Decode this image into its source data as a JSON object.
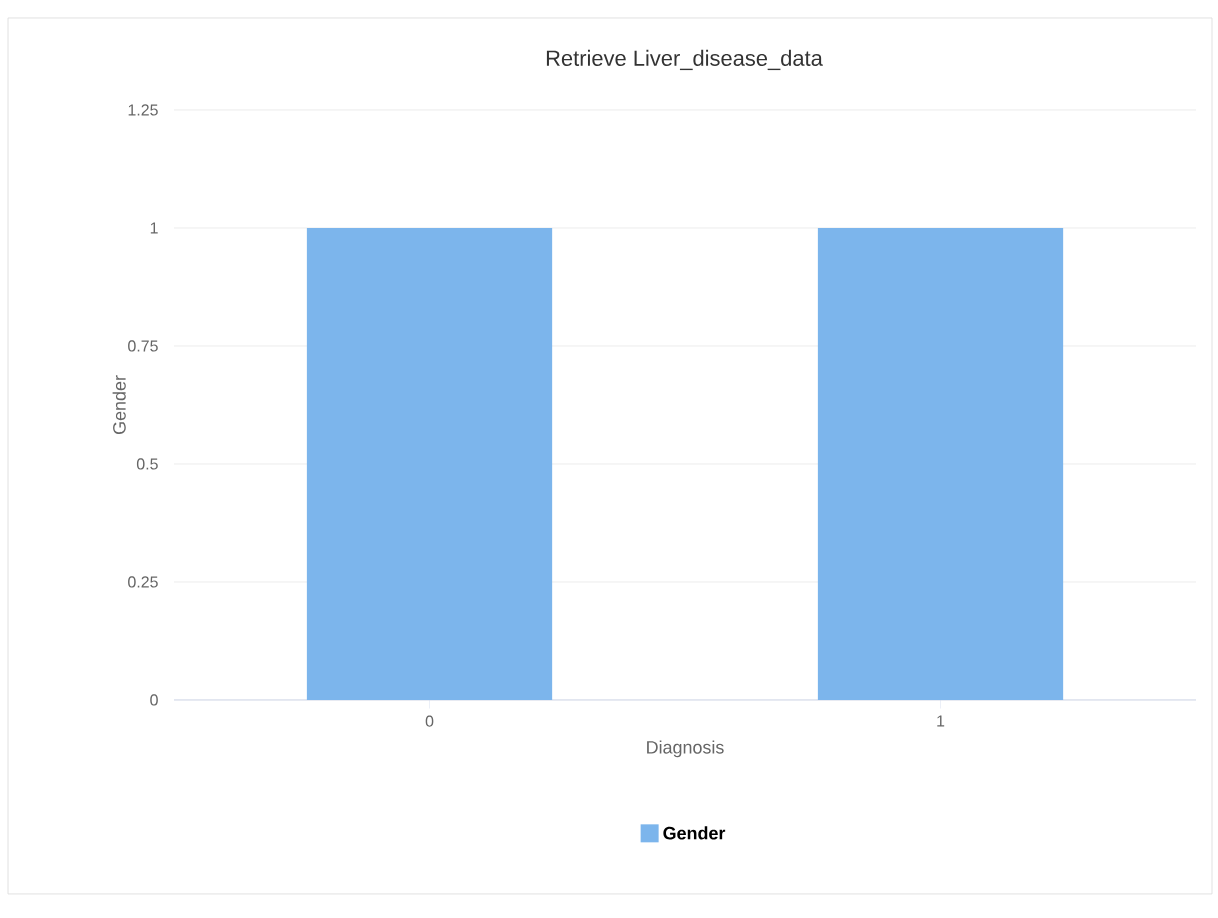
{
  "chart_data": {
    "type": "bar",
    "title": "Retrieve Liver_disease_data",
    "xlabel": "Diagnosis",
    "ylabel": "Gender",
    "categories": [
      "0",
      "1"
    ],
    "series": [
      {
        "name": "Gender",
        "color": "#7cb5ec",
        "values": [
          1,
          1
        ]
      }
    ],
    "ylim": [
      0,
      1.25
    ],
    "yticks": [
      0,
      0.25,
      0.5,
      0.75,
      1,
      1.25
    ],
    "grid": "y",
    "legend": "bottom"
  }
}
